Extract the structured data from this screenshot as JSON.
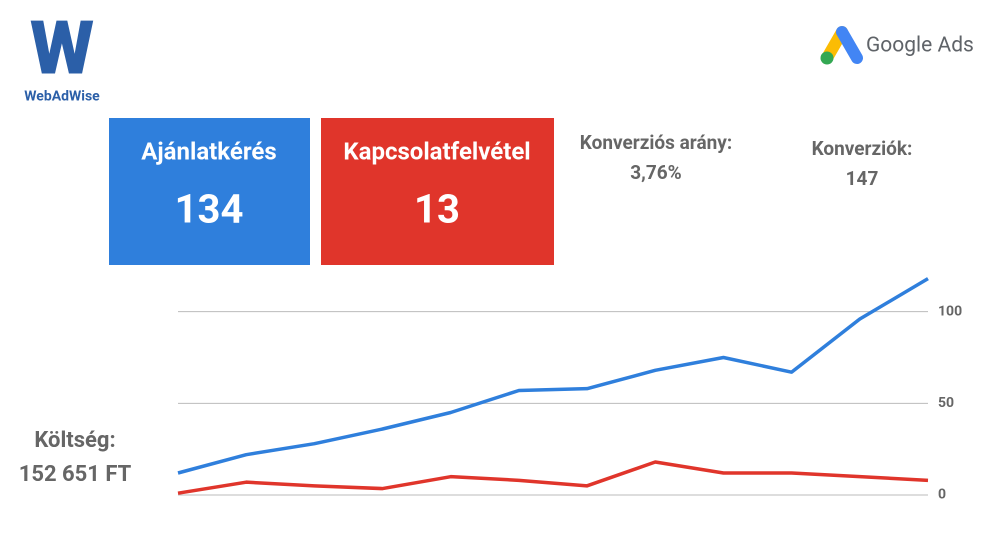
{
  "logo": {
    "mark": "W",
    "name": "WebAdWise"
  },
  "brand": "Google Ads",
  "kpis": [
    {
      "label": "Ajánlatkérés",
      "value": 134
    },
    {
      "label": "Kapcsolatfelvétel",
      "value": 13
    }
  ],
  "stats": [
    {
      "label": "Konverziós arány:",
      "value": "3,76%"
    },
    {
      "label": "Konverziók:",
      "value": "147"
    }
  ],
  "cost": {
    "label": "Költség:",
    "value": "152 651 FT"
  },
  "chart_data": {
    "type": "line",
    "categories": [
      null,
      null,
      null,
      null,
      null,
      null,
      null,
      null,
      null,
      null,
      null,
      null
    ],
    "series": [
      {
        "color": "#2f7fdc",
        "values": [
          12,
          22,
          28,
          36,
          45,
          57,
          58,
          68,
          75,
          67,
          96,
          118
        ]
      },
      {
        "color": "#e0352b",
        "values": [
          1,
          7,
          5,
          3.5,
          10,
          8,
          5,
          18,
          12,
          12,
          10,
          8
        ]
      }
    ],
    "ylim": [
      0,
      120
    ],
    "yticks": [
      0,
      50,
      100
    ],
    "grid": true,
    "y_axis_side": "right"
  }
}
